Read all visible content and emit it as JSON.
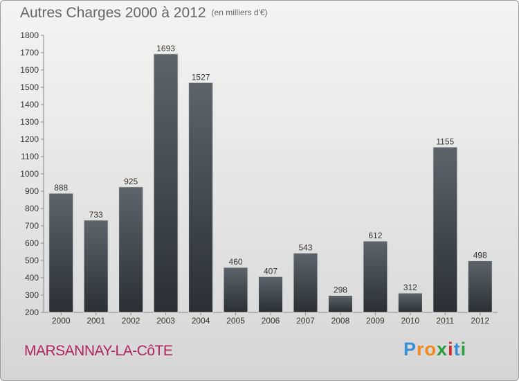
{
  "header": {
    "title": "Autres Charges 2000 à 2012",
    "unit": "(en milliers d'€)"
  },
  "commune": "MARSANNAY-LA-CôTE",
  "brand": {
    "letters": [
      "P",
      "r",
      "o",
      "x",
      "i",
      "t",
      "i"
    ],
    "colors": [
      "#3a8fd6",
      "#f08a1c",
      "#f08a1c",
      "#2a9d3e",
      "#d6262e",
      "#3a8fd6",
      "#2a9d3e"
    ]
  },
  "colors": {
    "bar_top": "#5e646a",
    "bar_bottom": "#2b2f33",
    "axis": "#888888",
    "text": "#333333"
  },
  "chart_data": {
    "type": "bar",
    "categories": [
      "2000",
      "2001",
      "2002",
      "2003",
      "2004",
      "2005",
      "2006",
      "2007",
      "2008",
      "2009",
      "2010",
      "2011",
      "2012"
    ],
    "values": [
      888,
      733,
      925,
      1693,
      1527,
      460,
      407,
      543,
      298,
      612,
      312,
      1155,
      498
    ],
    "title": "Autres Charges 2000 à 2012",
    "subtitle": "(en milliers d'€)",
    "ylim": [
      200,
      1800
    ],
    "yticks": [
      200,
      300,
      400,
      500,
      600,
      700,
      800,
      900,
      1000,
      1100,
      1200,
      1300,
      1400,
      1500,
      1600,
      1700,
      1800
    ],
    "grid": false,
    "data_labels": true
  }
}
